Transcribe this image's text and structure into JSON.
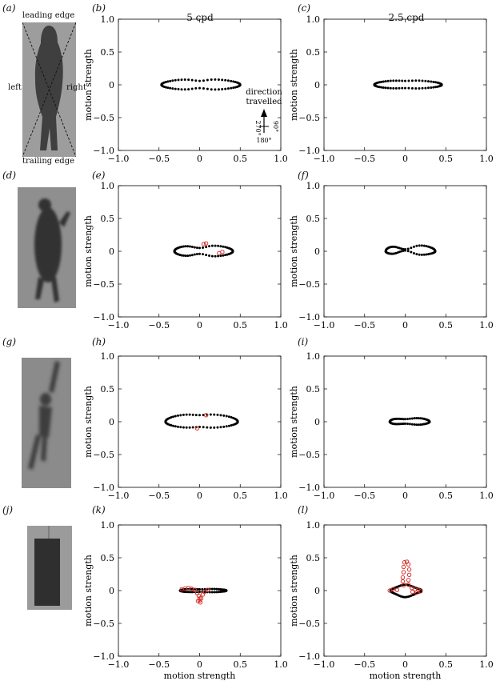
{
  "column_headers": [
    "5 cpd",
    "2.5 cpd"
  ],
  "panel_letters": {
    "a": "(a)",
    "b": "(b)",
    "c": "(c)",
    "d": "(d)",
    "e": "(e)",
    "f": "(f)",
    "g": "(g)",
    "h": "(h)",
    "i": "(i)",
    "j": "(j)",
    "k": "(k)",
    "l": "(l)"
  },
  "photo_labels": {
    "leading": "leading edge",
    "trailing": "trailing edge",
    "left": "left",
    "right": "right"
  },
  "axis": {
    "ylabel": "motion strength",
    "xlabel": "motion strength",
    "xticks": [
      "−1.0",
      "−0.5",
      "0",
      "0.5",
      "1.0"
    ],
    "yticks": [
      "1.0",
      "0.5",
      "0",
      "−0.5",
      "−1.0"
    ]
  },
  "direction_inset": {
    "line1": "direction",
    "line2": "travelled",
    "deg_left": "270°",
    "deg_right": "90°",
    "deg_bottom": "180°"
  },
  "colors": {
    "black_marker": "#000000",
    "red_marker": "#d6312b"
  },
  "chart_data": [
    {
      "id": "b",
      "type": "scatter",
      "xlim": [
        -1,
        1
      ],
      "ylim": [
        -1,
        1
      ],
      "shape": {
        "kind": "lobes",
        "xmin": -0.47,
        "xmax": 0.5,
        "ytop": 0.09,
        "ybot": -0.08,
        "pinch": 0.03
      },
      "red": []
    },
    {
      "id": "c",
      "type": "scatter",
      "xlim": [
        -1,
        1
      ],
      "ylim": [
        -1,
        1
      ],
      "shape": {
        "kind": "lobes",
        "xmin": -0.38,
        "xmax": 0.45,
        "ytop": 0.07,
        "ybot": -0.06,
        "pinch": 0.01
      },
      "red": []
    },
    {
      "id": "e",
      "type": "scatter",
      "xlim": [
        -1,
        1
      ],
      "ylim": [
        -1,
        1
      ],
      "shape": {
        "kind": "lobes",
        "xmin": -0.31,
        "xmax": 0.41,
        "ytop": 0.1,
        "ybot": -0.09,
        "pinch": 0.05
      },
      "red": [
        [
          0.05,
          0.11
        ],
        [
          0.08,
          0.12
        ],
        [
          0.24,
          -0.03
        ],
        [
          0.28,
          -0.01
        ]
      ]
    },
    {
      "id": "f",
      "type": "scatter",
      "xlim": [
        -1,
        1
      ],
      "ylim": [
        -1,
        1
      ],
      "shape": {
        "kind": "lobes",
        "xmin": -0.24,
        "xmax": 0.37,
        "ytop": 0.11,
        "ybot": -0.07,
        "pinch": 0.08
      },
      "red": []
    },
    {
      "id": "h",
      "type": "scatter",
      "xlim": [
        -1,
        1
      ],
      "ylim": [
        -1,
        1
      ],
      "shape": {
        "kind": "lobes",
        "xmin": -0.42,
        "xmax": 0.47,
        "ytop": 0.12,
        "ybot": -0.1,
        "pinch": 0.02
      },
      "red": [
        [
          0.08,
          0.1
        ],
        [
          -0.03,
          -0.1
        ]
      ]
    },
    {
      "id": "i",
      "type": "scatter",
      "xlim": [
        -1,
        1
      ],
      "ylim": [
        -1,
        1
      ],
      "shape": {
        "kind": "lobes",
        "xmin": -0.19,
        "xmax": 0.3,
        "ytop": 0.07,
        "ybot": -0.06,
        "pinch": 0.03
      },
      "red": []
    },
    {
      "id": "k",
      "type": "scatter",
      "xlim": [
        -1,
        1
      ],
      "ylim": [
        -1,
        1
      ],
      "shape": {
        "kind": "lobes",
        "xmin": -0.24,
        "xmax": 0.33,
        "ytop": 0.03,
        "ybot": -0.03,
        "pinch": 0.01
      },
      "red": [
        [
          -0.22,
          0.02
        ],
        [
          -0.18,
          0.03
        ],
        [
          -0.14,
          0.04
        ],
        [
          -0.1,
          0.03
        ],
        [
          -0.06,
          0.01
        ],
        [
          -0.03,
          -0.04
        ],
        [
          -0.01,
          -0.08
        ],
        [
          0.0,
          -0.12
        ],
        [
          0.0,
          -0.15
        ],
        [
          0.01,
          -0.18
        ],
        [
          0.02,
          -0.12
        ],
        [
          0.04,
          -0.06
        ],
        [
          0.06,
          -0.02
        ],
        [
          0.1,
          0.01
        ],
        [
          -0.02,
          -0.16
        ]
      ]
    },
    {
      "id": "l",
      "type": "scatter",
      "xlim": [
        -1,
        1
      ],
      "ylim": [
        -1,
        1
      ],
      "shape": {
        "kind": "lobes",
        "xmin": -0.18,
        "xmax": 0.2,
        "ytop": 0.03,
        "ybot": -0.04,
        "pinch": -0.06
      },
      "red": [
        [
          -0.02,
          0.08
        ],
        [
          -0.03,
          0.14
        ],
        [
          -0.03,
          0.2
        ],
        [
          -0.02,
          0.28
        ],
        [
          -0.02,
          0.36
        ],
        [
          -0.01,
          0.43
        ],
        [
          0.02,
          0.44
        ],
        [
          0.04,
          0.4
        ],
        [
          0.05,
          0.32
        ],
        [
          0.05,
          0.24
        ],
        [
          0.04,
          0.16
        ],
        [
          0.04,
          0.09
        ],
        [
          0.08,
          0.04
        ],
        [
          0.12,
          0.02
        ],
        [
          0.16,
          0.01
        ],
        [
          0.19,
          -0.01
        ],
        [
          0.14,
          -0.03
        ],
        [
          0.09,
          -0.02
        ],
        [
          -0.1,
          0.01
        ],
        [
          -0.15,
          0.02
        ],
        [
          -0.19,
          0.0
        ]
      ]
    }
  ]
}
